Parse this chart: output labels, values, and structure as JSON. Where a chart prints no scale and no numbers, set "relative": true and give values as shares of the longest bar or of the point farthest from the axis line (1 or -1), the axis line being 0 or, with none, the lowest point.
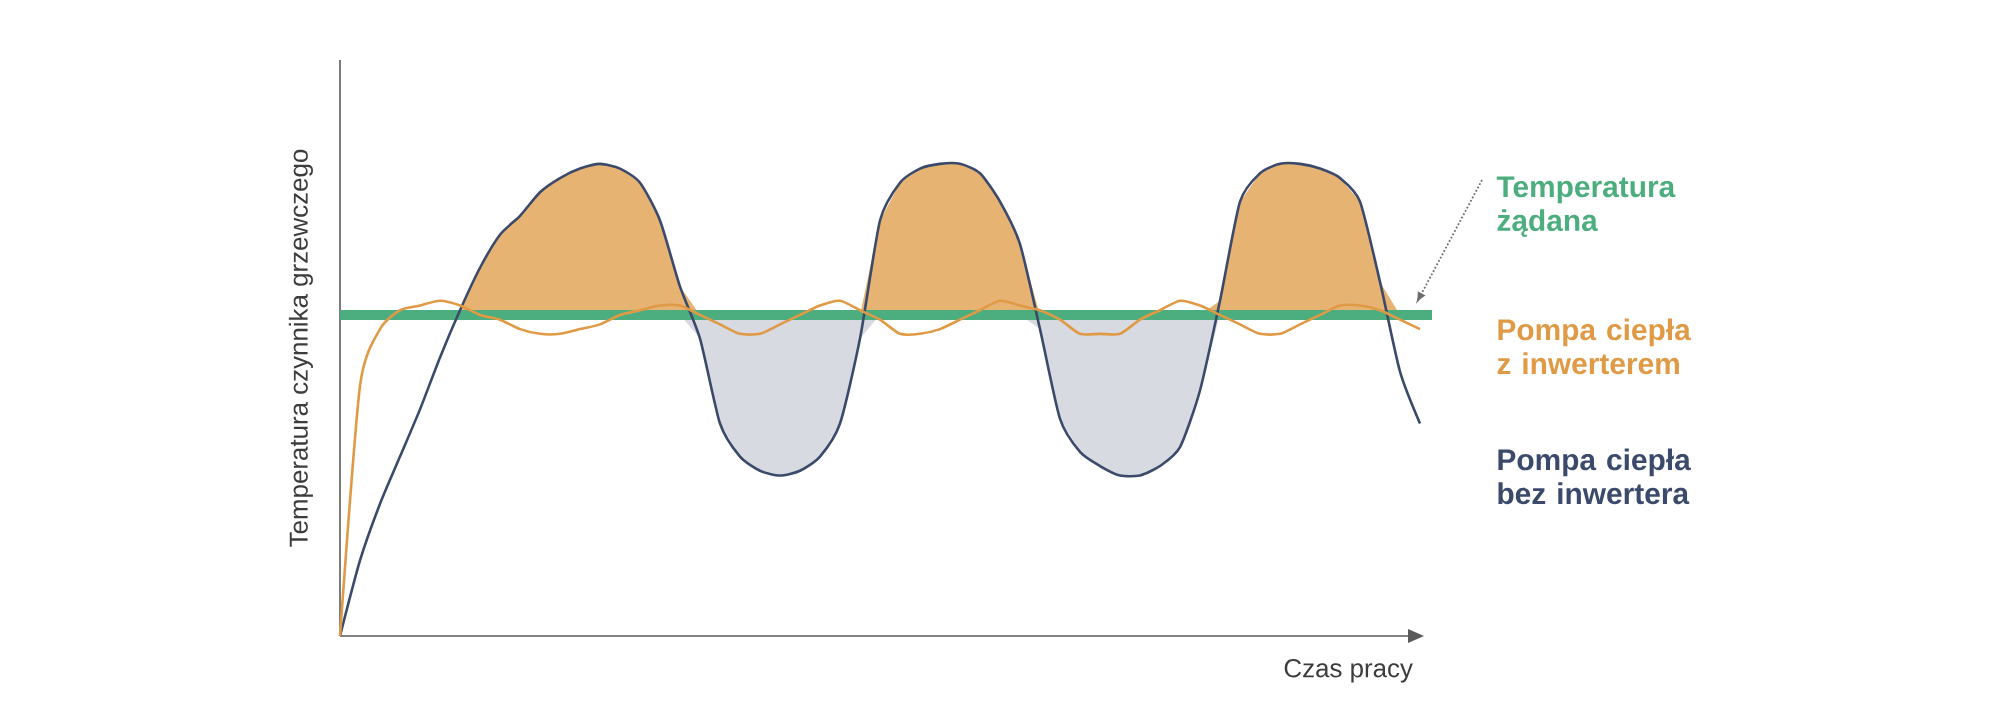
{
  "chart_data": {
    "type": "line",
    "relative": true,
    "xlabel": "Czas pracy",
    "ylabel": "Temperatura czynnika grzewczego",
    "legend": "right",
    "categories": [
      null,
      null,
      null,
      null,
      null,
      null,
      null,
      null,
      null,
      null,
      null,
      null,
      null,
      null,
      null,
      null,
      null,
      null,
      null,
      null,
      null,
      null,
      null,
      null,
      null,
      null,
      null,
      null,
      null,
      null,
      null,
      null,
      null,
      null,
      null,
      null,
      null,
      null,
      null,
      null,
      null,
      null,
      null,
      null,
      null,
      null,
      null,
      null,
      null,
      null,
      null,
      null,
      null,
      null,
      null
    ],
    "ref_lines": [
      {
        "axis": "y",
        "value": 0.68,
        "label": "Temperatura żądana",
        "color": "#4cae7e"
      }
    ],
    "series": [
      {
        "name": "Pompa ciepła z inwerterem",
        "color": "#e09a45",
        "values": [
          0,
          0.53,
          0.65,
          0.69,
          0.7,
          0.71,
          0.7,
          0.68,
          0.67,
          0.65,
          0.64,
          0.64,
          0.65,
          0.66,
          0.68,
          0.69,
          0.7,
          0.7,
          0.68,
          0.66,
          0.64,
          0.64,
          0.66,
          0.68,
          0.7,
          0.71,
          0.69,
          0.67,
          0.64,
          0.64,
          0.65,
          0.67,
          0.69,
          0.71,
          0.7,
          0.69,
          0.67,
          0.64,
          0.64,
          0.64,
          0.67,
          0.69,
          0.71,
          0.7,
          0.68,
          0.66,
          0.64,
          0.64,
          0.66,
          0.68,
          0.7,
          0.7,
          0.69,
          0.67,
          0.65
        ],
        "lower": [
          0.68,
          0.68,
          0.68,
          0.68,
          0.68,
          0.68,
          0.68,
          0.68,
          0.68,
          0.68,
          0.68,
          0.68,
          0.68,
          0.68,
          0.68,
          0.68,
          0.68,
          0.68,
          0.68,
          0.68,
          0.68,
          0.68,
          0.68,
          0.68,
          0.68,
          0.68,
          0.68,
          0.68,
          0.68,
          0.68,
          0.68,
          0.68,
          0.68,
          0.68,
          0.68,
          0.68,
          0.68,
          0.68,
          0.68,
          0.68,
          0.68,
          0.68,
          0.68,
          0.68,
          0.68,
          0.68,
          0.68,
          0.68,
          0.68,
          0.68,
          0.68,
          0.68,
          0.68,
          0.68,
          0.68
        ],
        "upper": [
          0.68,
          0.68,
          0.68,
          0.68,
          0.68,
          0.68,
          0.69,
          0.78,
          0.85,
          0.89,
          0.94,
          0.97,
          0.99,
          1,
          0.99,
          0.96,
          0.88,
          0.74,
          0.68,
          0.68,
          0.68,
          0.68,
          0.68,
          0.68,
          0.68,
          0.68,
          0.68,
          0.88,
          0.96,
          0.99,
          1,
          1,
          0.98,
          0.92,
          0.83,
          0.68,
          0.68,
          0.68,
          0.68,
          0.68,
          0.68,
          0.68,
          0.68,
          0.68,
          0.71,
          0.92,
          0.98,
          1,
          1,
          0.99,
          0.97,
          0.92,
          0.75,
          0.68,
          0.68
        ]
      },
      {
        "name": "Pompa ciepła bez inwertera",
        "color": "#3b4a6b",
        "values": [
          0,
          0.16,
          0.28,
          0.38,
          0.48,
          0.59,
          0.69,
          0.78,
          0.85,
          0.89,
          0.94,
          0.97,
          0.99,
          1,
          0.99,
          0.96,
          0.88,
          0.74,
          0.63,
          0.45,
          0.38,
          0.35,
          0.34,
          0.35,
          0.38,
          0.45,
          0.63,
          0.88,
          0.96,
          0.99,
          1,
          1,
          0.98,
          0.92,
          0.83,
          0.65,
          0.46,
          0.39,
          0.36,
          0.34,
          0.34,
          0.36,
          0.4,
          0.52,
          0.71,
          0.92,
          0.98,
          1,
          1,
          0.99,
          0.97,
          0.92,
          0.75,
          0.56,
          0.45
        ],
        "lower": [
          0.68,
          0.68,
          0.68,
          0.68,
          0.68,
          0.68,
          0.68,
          0.68,
          0.68,
          0.68,
          0.68,
          0.68,
          0.68,
          0.68,
          0.68,
          0.68,
          0.68,
          0.68,
          0.63,
          0.45,
          0.38,
          0.35,
          0.34,
          0.35,
          0.38,
          0.45,
          0.63,
          0.68,
          0.68,
          0.68,
          0.68,
          0.68,
          0.68,
          0.68,
          0.68,
          0.65,
          0.46,
          0.39,
          0.36,
          0.34,
          0.34,
          0.36,
          0.4,
          0.52,
          0.68,
          0.68,
          0.68,
          0.68,
          0.68,
          0.68,
          0.68,
          0.68,
          0.68,
          0.68,
          0.68
        ],
        "upper": [
          0.68,
          0.68,
          0.68,
          0.68,
          0.68,
          0.68,
          0.68,
          0.68,
          0.68,
          0.68,
          0.68,
          0.68,
          0.68,
          0.68,
          0.68,
          0.68,
          0.68,
          0.68,
          0.68,
          0.68,
          0.68,
          0.68,
          0.68,
          0.68,
          0.68,
          0.68,
          0.68,
          0.68,
          0.68,
          0.68,
          0.68,
          0.68,
          0.68,
          0.68,
          0.68,
          0.68,
          0.68,
          0.68,
          0.68,
          0.68,
          0.68,
          0.68,
          0.68,
          0.68,
          0.68,
          0.68,
          0.68,
          0.68,
          0.68,
          0.68,
          0.68,
          0.68,
          0.68,
          0.68,
          0.68
        ]
      }
    ]
  }
}
